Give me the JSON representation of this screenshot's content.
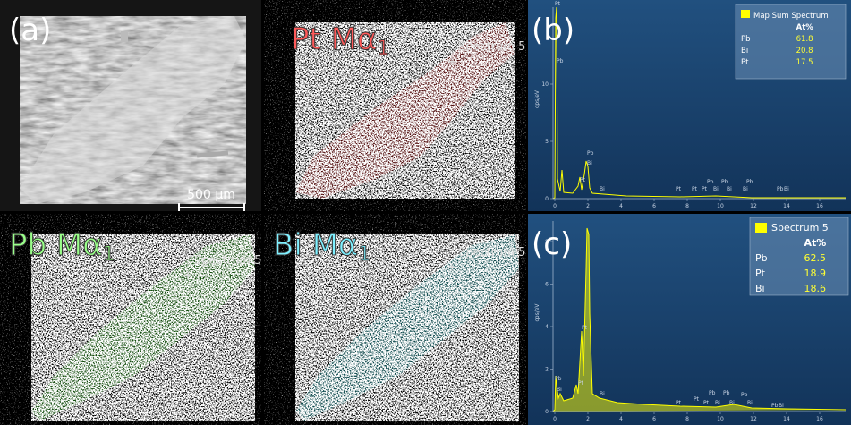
{
  "maps": [
    {
      "label": "(a)",
      "scale_bar": "500 µm"
    },
    {
      "element": "Pt",
      "line": "Mα",
      "subscript": "1",
      "marker": "Spectrum 5"
    },
    {
      "element": "Pb",
      "line": "Mα",
      "subscript": "1",
      "marker": "Spectrum 5"
    },
    {
      "element": "Bi",
      "line": "Mα",
      "subscript": "1",
      "marker": "Spectrum 5"
    }
  ],
  "spectra": [
    {
      "label": "(b)",
      "legend": "Map Sum Spectrum",
      "column": "At%",
      "rows": [
        [
          "Pb",
          "61.8"
        ],
        [
          "Bi",
          "20.8"
        ],
        [
          "Pt",
          "17.5"
        ]
      ],
      "y_axis": "cps/eV",
      "yticks": [
        "0",
        "5",
        "10"
      ],
      "xticks": [
        "0",
        "2",
        "4",
        "6",
        "8",
        "10",
        "12",
        "14",
        "16"
      ],
      "peaks": [
        "Pt",
        "Pb",
        "Pt",
        "Pb",
        "Bi",
        "Bi",
        "Pt",
        "Pt",
        "Pt",
        "Pb",
        "Bi",
        "Pb",
        "Bi",
        "Bi",
        "Pb",
        "Pb",
        "Bi"
      ]
    },
    {
      "label": "(c)",
      "legend": "Spectrum 5",
      "column": "At%",
      "rows": [
        [
          "Pb",
          "62.5"
        ],
        [
          "Pt",
          "18.9"
        ],
        [
          "Bi",
          "18.6"
        ]
      ],
      "y_axis": "cps/eV",
      "yticks": [
        "0",
        "2",
        "4",
        "6",
        "8"
      ],
      "xticks": [
        "0",
        "2",
        "4",
        "6",
        "8",
        "10",
        "12",
        "14",
        "16"
      ],
      "peaks": [
        "Pb",
        "Bi",
        "Pt",
        "Pt",
        "Bi",
        "Pt",
        "Pt",
        "Pt",
        "Pb",
        "Bi",
        "Pb",
        "Bi",
        "Pb",
        "Bi",
        "Pb",
        "Bi"
      ]
    }
  ]
}
